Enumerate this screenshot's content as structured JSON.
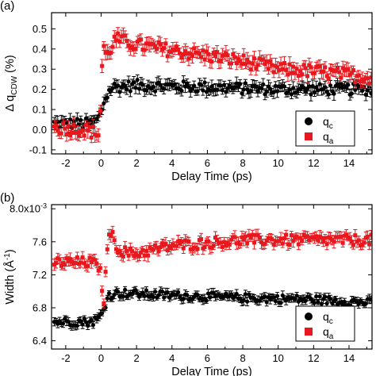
{
  "chart_data": [
    {
      "type": "scatter",
      "panel_label": "(a)",
      "xlabel": "Delay Time (ps)",
      "ylabel_main": "Δ q",
      "ylabel_sub": "CDW",
      "ylabel_unit": " (%)",
      "xlim": [
        -2.8,
        15.3
      ],
      "ylim": [
        -0.12,
        0.58
      ],
      "xticks": [
        "-2",
        "0",
        "2",
        "4",
        "6",
        "8",
        "10",
        "12",
        "14"
      ],
      "xtick_values": [
        -2,
        0,
        2,
        4,
        6,
        8,
        10,
        12,
        14
      ],
      "yticks": [
        "-0.1",
        "0.0",
        "0.1",
        "0.2",
        "0.3",
        "0.4",
        "0.5"
      ],
      "ytick_values": [
        -0.1,
        0,
        0.1,
        0.2,
        0.3,
        0.4,
        0.5
      ],
      "legend_position": "bottom-right",
      "series": [
        {
          "name_main": "q",
          "name_sub": "c",
          "color": "#000000",
          "marker": "circle",
          "profile": [
            [
              -2.6,
              0.03
            ],
            [
              -1.5,
              0.03
            ],
            [
              -0.5,
              0.03
            ],
            [
              -0.1,
              0.06
            ],
            [
              0.2,
              0.15
            ],
            [
              0.6,
              0.21
            ],
            [
              2,
              0.22
            ],
            [
              6,
              0.21
            ],
            [
              10,
              0.2
            ],
            [
              15.2,
              0.2
            ]
          ],
          "error": 0.025
        },
        {
          "name_main": "q",
          "name_sub": "a",
          "color": "#e8191e",
          "marker": "square",
          "profile": [
            [
              -2.6,
              0.01
            ],
            [
              -1.0,
              0.0
            ],
            [
              -0.1,
              -0.02
            ],
            [
              0.1,
              0.43
            ],
            [
              0.3,
              0.36
            ],
            [
              0.8,
              0.45
            ],
            [
              2,
              0.42
            ],
            [
              5,
              0.38
            ],
            [
              8,
              0.34
            ],
            [
              10,
              0.3
            ],
            [
              12,
              0.29
            ],
            [
              15.2,
              0.26
            ]
          ],
          "error": 0.03
        }
      ]
    },
    {
      "type": "scatter",
      "panel_label": "(b)",
      "xlabel": "Delay Time (ps)",
      "ylabel_main": "Width (Å",
      "ylabel_sup": "-1",
      "ylabel_end": ")",
      "xlim": [
        -2.8,
        15.3
      ],
      "ylim": [
        6.3,
        8.05
      ],
      "xticks": [
        "-2",
        "0",
        "2",
        "4",
        "6",
        "8",
        "10",
        "12",
        "14"
      ],
      "xtick_values": [
        -2,
        0,
        2,
        4,
        6,
        8,
        10,
        12,
        14
      ],
      "yticks": [
        "6.4",
        "6.8",
        "7.2",
        "7.6",
        "8.0x10"
      ],
      "ytick_values": [
        6.4,
        6.8,
        7.2,
        7.6,
        8.0
      ],
      "ytick_top_exponent": "-3",
      "legend_position": "bottom-right",
      "series": [
        {
          "name_main": "q",
          "name_sub": "c",
          "color": "#000000",
          "marker": "circle",
          "profile": [
            [
              -2.6,
              6.63
            ],
            [
              -0.5,
              6.63
            ],
            [
              -0.1,
              6.68
            ],
            [
              0.1,
              6.75
            ],
            [
              0.4,
              6.95
            ],
            [
              1,
              6.98
            ],
            [
              4,
              6.95
            ],
            [
              8,
              6.92
            ],
            [
              12,
              6.9
            ],
            [
              15.2,
              6.86
            ]
          ],
          "error": 0.045
        },
        {
          "name_main": "q",
          "name_sub": "a",
          "color": "#e8191e",
          "marker": "square",
          "profile": [
            [
              -2.6,
              7.35
            ],
            [
              -0.6,
              7.35
            ],
            [
              -0.1,
              7.3
            ],
            [
              0.15,
              6.9
            ],
            [
              0.45,
              7.75
            ],
            [
              1.0,
              7.5
            ],
            [
              1.8,
              7.45
            ],
            [
              4,
              7.55
            ],
            [
              8,
              7.62
            ],
            [
              12,
              7.62
            ],
            [
              15.2,
              7.62
            ]
          ],
          "error": 0.06
        }
      ]
    }
  ]
}
